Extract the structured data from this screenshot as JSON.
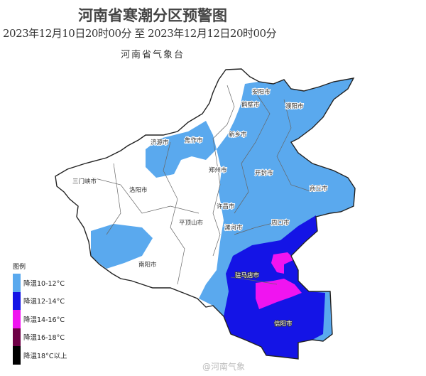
{
  "header": {
    "title": "河南省寒潮分区预警图",
    "period": "2023年12月10日20时00分 至 2023年12月12日20时00分",
    "agency": "河南省气象台"
  },
  "legend": {
    "title": "图例",
    "items": [
      {
        "label": "降温10-12°C",
        "color": "#5aa9ee"
      },
      {
        "label": "降温12-14°C",
        "color": "#1414e6"
      },
      {
        "label": "降温14-16°C",
        "color": "#f014f0"
      },
      {
        "label": "降温16-18°C",
        "color": "#6e0046"
      },
      {
        "label": "降温18°C以上",
        "color": "#000000"
      }
    ]
  },
  "cities": {
    "anyang": "安阳市",
    "hebi": "鹤壁市",
    "puyang": "濮阳市",
    "xinxiang": "新乡市",
    "jiaozuo": "焦作市",
    "jiyuan": "济源市",
    "zhengzhou": "郑州市",
    "kaifeng": "开封市",
    "shangqiu": "商丘市",
    "sanmenxia": "三门峡市",
    "luoyang": "洛阳市",
    "xuchang": "许昌市",
    "pingdingshan": "平顶山市",
    "luohe": "漯河市",
    "zhoukou": "周口市",
    "nanyang": "南阳市",
    "zhumadian": "驻马店市",
    "xinyang": "信阳市"
  },
  "watermark": "@河南气象"
}
